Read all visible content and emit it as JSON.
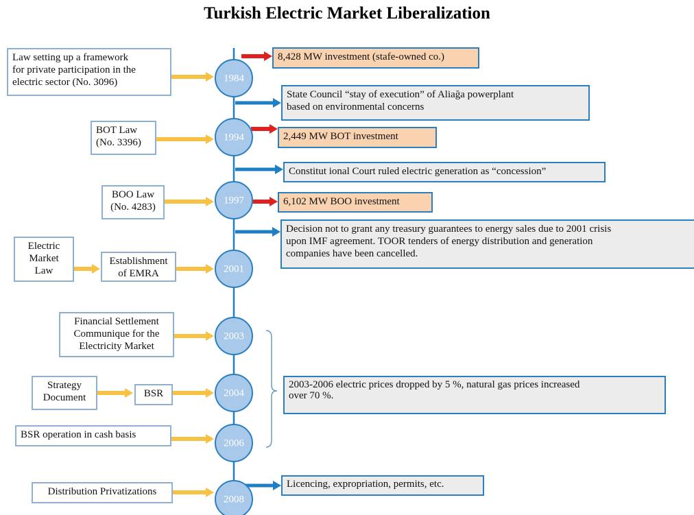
{
  "title": "Turkish Electric Market Liberalization",
  "years": [
    "1984",
    "1994",
    "1997",
    "2001",
    "2003",
    "2004",
    "2006",
    "2008"
  ],
  "left_boxes": [
    {
      "lines": [
        "Law setting up a framework",
        "for private participation in the",
        "electric sector (No. 3096)"
      ]
    },
    {
      "lines": [
        "BOT Law",
        "(No. 3396)"
      ]
    },
    {
      "lines": [
        "BOO Law",
        "(No. 4283)"
      ]
    },
    {
      "lines": [
        "Electric",
        "Market",
        "Law"
      ]
    },
    {
      "lines": [
        "Establishment",
        "of EMRA"
      ]
    },
    {
      "lines": [
        "Financial Settlement",
        "Communique for the",
        "Electricity Market"
      ]
    },
    {
      "lines": [
        "Strategy",
        "Document"
      ]
    },
    {
      "lines": [
        "BSR"
      ]
    },
    {
      "lines": [
        "BSR operation in cash basis"
      ]
    },
    {
      "lines": [
        "Distribution Privatizations"
      ]
    }
  ],
  "right_boxes": [
    {
      "lines": [
        "8,428 MW investment (stafe-owned co.)"
      ]
    },
    {
      "lines": [
        "State Council “stay of execution” of Aliağa powerplant",
        "based on environmental concerns"
      ]
    },
    {
      "lines": [
        "2,449 MW BOT investment"
      ]
    },
    {
      "lines": [
        "Constitut ional Court ruled electric generation as “concession”"
      ]
    },
    {
      "lines": [
        "6,102 MW BOO investment"
      ]
    },
    {
      "lines": [
        "Decision not to grant any treasury guarantees to energy sales due to 2001 crisis",
        "upon IMF agreement. TOOR tenders of energy distribution and generation",
        "companies have been cancelled."
      ]
    },
    {
      "lines": [
        "2003-2006 electric prices dropped by 5 %, natural gas prices increased",
        "over 70 %."
      ]
    },
    {
      "lines": [
        "Licencing, expropriation, permits, etc."
      ]
    }
  ]
}
